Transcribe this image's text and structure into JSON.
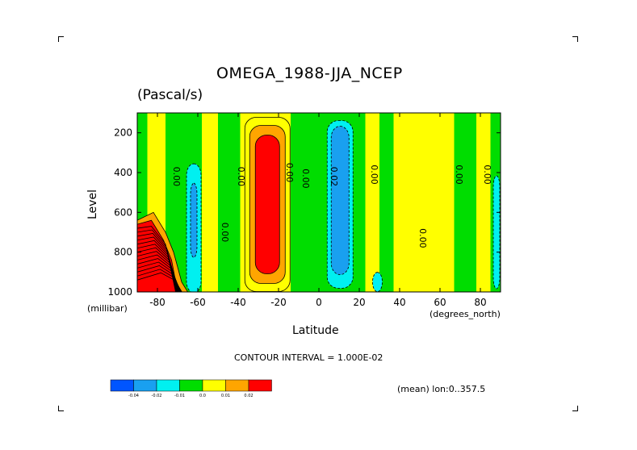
{
  "chart_data": {
    "type": "heatmap",
    "title": "OMEGA_1988-JJA_NCEP",
    "subtitle": "(Pascal/s)",
    "xlabel": "Latitude",
    "ylabel": "Level",
    "x_unit": "(degrees_north)",
    "y_unit": "(millibar)",
    "xlim": [
      -90,
      90
    ],
    "ylim": [
      1000,
      100
    ],
    "x_ticks": [
      -80,
      -60,
      -40,
      -20,
      0,
      20,
      40,
      60,
      80
    ],
    "y_ticks": [
      200,
      400,
      600,
      800,
      1000
    ],
    "contour_interval_text": "CONTOUR INTERVAL = 1.000E-02",
    "mean_text": "(mean) lon:0..357.5",
    "colorbar": {
      "colors": [
        "#0055ff",
        "#19a0f0",
        "#00f0f0",
        "#00dd00",
        "#ffff00",
        "#ffa500",
        "#ff0000"
      ],
      "labels": [
        "-0.04",
        "-0.02",
        "-0.01",
        "0.0",
        "0.01",
        "0.02"
      ]
    },
    "contour_labels": [
      {
        "lat": -72,
        "lev": 420,
        "text": "0.00"
      },
      {
        "lat": -40,
        "lev": 420,
        "text": "0.00"
      },
      {
        "lat": -48,
        "lev": 700,
        "text": "0.00"
      },
      {
        "lat": -16,
        "lev": 400,
        "text": "0.00"
      },
      {
        "lat": -8,
        "lev": 430,
        "text": "0.00"
      },
      {
        "lat": 6,
        "lev": 420,
        "text": "0.02"
      },
      {
        "lat": 26,
        "lev": 410,
        "text": "0.00"
      },
      {
        "lat": 50,
        "lev": 730,
        "text": "0.00"
      },
      {
        "lat": 68,
        "lev": 410,
        "text": "0.00"
      },
      {
        "lat": 82,
        "lev": 410,
        "text": "0.00"
      }
    ],
    "features": [
      {
        "name": "descent_max",
        "lat_range": [
          -37,
          -14
        ],
        "lev_range": [
          260,
          900
        ],
        "value": 0.02
      },
      {
        "name": "ascent_itcz",
        "lat_range": [
          5,
          16
        ],
        "lev_range": [
          150,
          960
        ],
        "value": -0.02
      },
      {
        "name": "antarctic_steep",
        "lat_range": [
          -90,
          -64
        ],
        "lev_range": [
          620,
          1000
        ],
        "value": 0.02
      }
    ]
  }
}
